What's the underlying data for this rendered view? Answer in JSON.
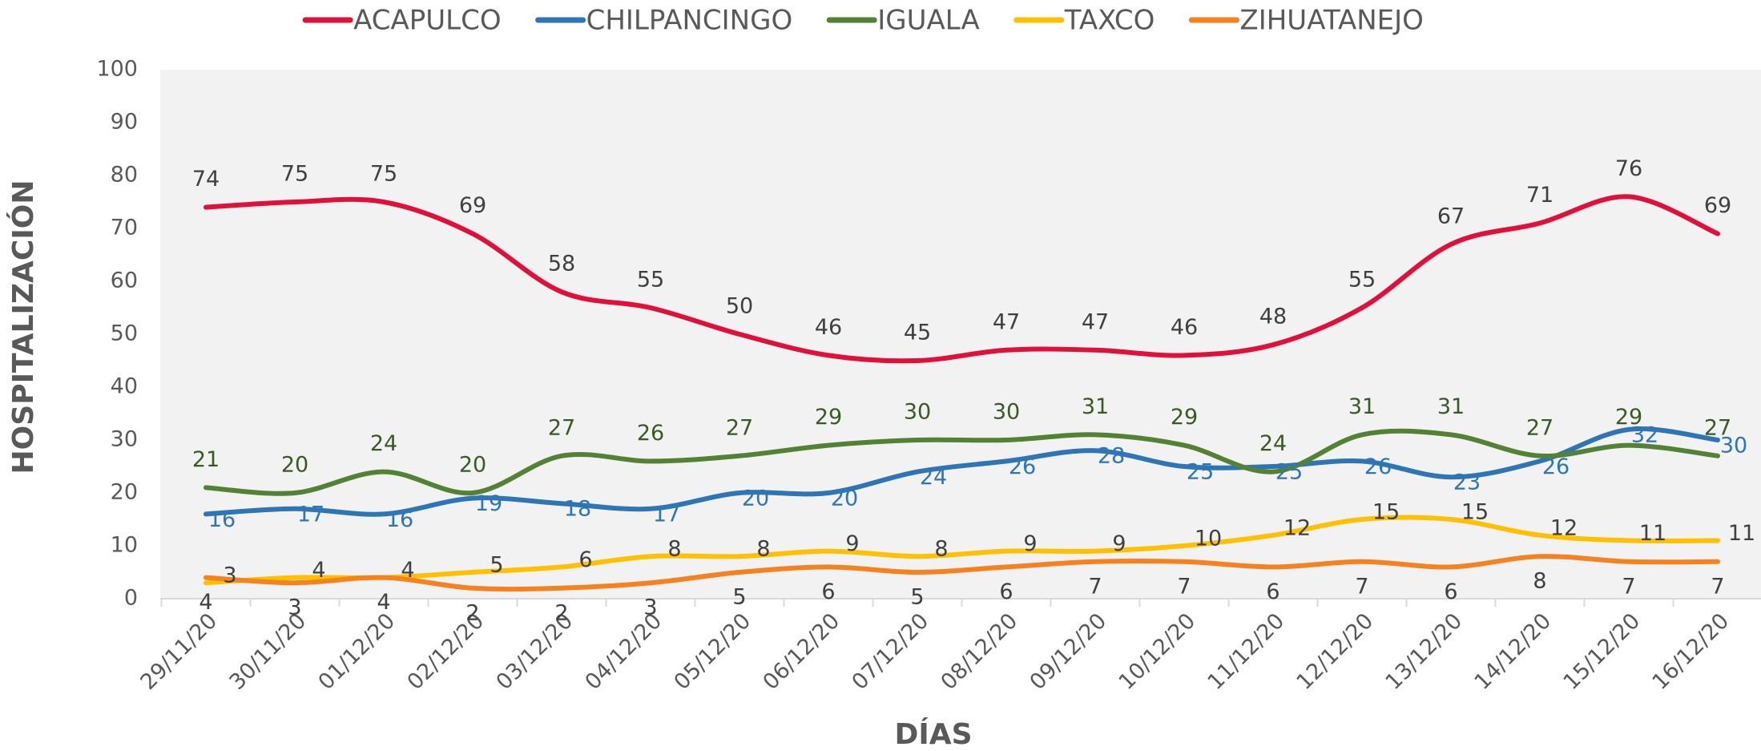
{
  "chart_data": {
    "type": "line",
    "x_label": "DÍAS",
    "y_label": "HOSPITALIZACIÓN",
    "categories": [
      "29/11/20",
      "30/11/20",
      "01/12/20",
      "02/12/20",
      "03/12/20",
      "04/12/20",
      "05/12/20",
      "06/12/20",
      "07/12/20",
      "08/12/20",
      "09/12/20",
      "10/12/20",
      "11/12/20",
      "12/12/20",
      "13/12/20",
      "14/12/20",
      "15/12/20",
      "16/12/20"
    ],
    "series": [
      {
        "name": "ACAPULCO",
        "color": "#e0103a",
        "label_color": "#404040",
        "values": [
          74,
          75,
          75,
          69,
          58,
          55,
          50,
          46,
          45,
          47,
          47,
          46,
          48,
          55,
          67,
          71,
          76,
          69
        ]
      },
      {
        "name": "CHILPANCINGO",
        "color": "#2e75b6",
        "label_color": "#2e75b6",
        "values": [
          16,
          17,
          16,
          19,
          18,
          17,
          20,
          20,
          24,
          26,
          28,
          25,
          25,
          26,
          23,
          26,
          32,
          30
        ]
      },
      {
        "name": "IGUALA",
        "color": "#548235",
        "label_color": "#3a5a24",
        "values": [
          21,
          20,
          24,
          20,
          27,
          26,
          27,
          29,
          30,
          30,
          31,
          29,
          24,
          31,
          31,
          27,
          29,
          27
        ]
      },
      {
        "name": "TAXCO",
        "color": "#ffc000",
        "label_color": "#404040",
        "values": [
          3,
          4,
          4,
          5,
          6,
          8,
          8,
          9,
          8,
          9,
          9,
          10,
          12,
          15,
          15,
          12,
          11,
          11
        ]
      },
      {
        "name": "ZIHUATANEJO",
        "color": "#f5821f",
        "label_color": "#404040",
        "values": [
          4,
          3,
          4,
          2,
          2,
          3,
          5,
          6,
          5,
          6,
          7,
          7,
          6,
          7,
          6,
          8,
          7,
          7
        ]
      }
    ],
    "ylim": [
      0,
      100
    ],
    "yticks": [
      0,
      10,
      20,
      30,
      40,
      50,
      60,
      70,
      80,
      90,
      100
    ],
    "background": "#f2f2f2",
    "legend": "top",
    "smooth": true
  }
}
